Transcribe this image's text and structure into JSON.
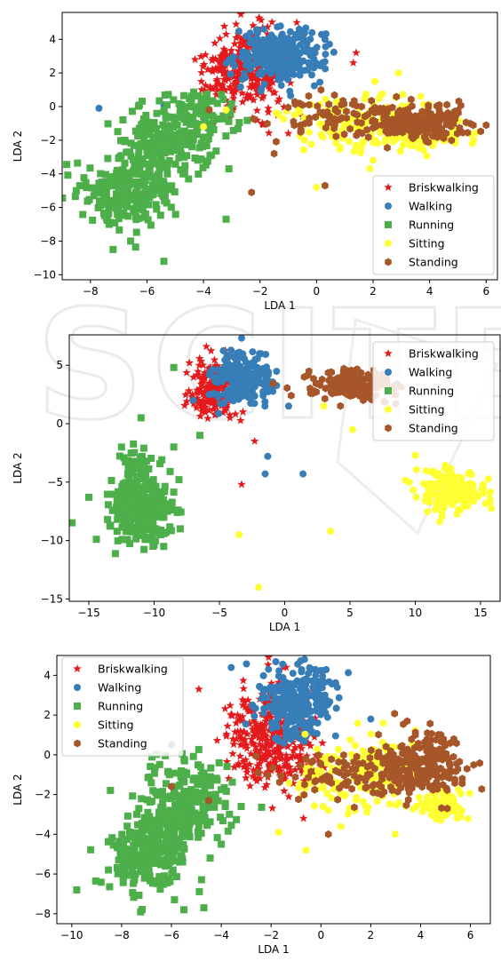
{
  "colors": {
    "Briskwalking": "#e41a1c",
    "Walking": "#377eb8",
    "Running": "#4daf4a",
    "Sitting": "#ffff33",
    "Standing": "#a65628"
  },
  "chart_data": [
    {
      "type": "scatter",
      "title": "",
      "xlabel": "LDA 1",
      "ylabel": "LDA 2",
      "xlim": [
        -9,
        6.4
      ],
      "ylim": [
        -10.3,
        5.6
      ],
      "xticks": [
        "−8",
        "−6",
        "−4",
        "−2",
        "0",
        "2",
        "4",
        "6"
      ],
      "xtick_values": [
        -8,
        -6,
        -4,
        -2,
        0,
        2,
        4,
        6
      ],
      "yticks": [
        "−10",
        "−8",
        "−6",
        "−4",
        "−2",
        "0",
        "2",
        "4"
      ],
      "ytick_values": [
        -10,
        -8,
        -6,
        -4,
        -2,
        0,
        2,
        4
      ],
      "legend_position": "lower-right",
      "series": [
        {
          "name": "Briskwalking",
          "marker": "star",
          "clusters": [
            {
              "cx": -2.3,
              "cy": 2.2,
              "sx": 0.7,
              "sy": 1.2,
              "n": 260
            },
            {
              "cx": -3.3,
              "cy": 2.0,
              "sx": 0.45,
              "sy": 0.8,
              "n": 60
            }
          ],
          "points": [
            [
              -0.7,
              5.0
            ],
            [
              -3.2,
              4.3
            ],
            [
              1.4,
              3.2
            ],
            [
              1.3,
              2.6
            ],
            [
              -4.3,
              2.8
            ],
            [
              -0.5,
              -0.6
            ],
            [
              -1.0,
              -1.6
            ]
          ]
        },
        {
          "name": "Walking",
          "marker": "circle",
          "clusters": [
            {
              "cx": -1.3,
              "cy": 3.0,
              "sx": 0.75,
              "sy": 0.8,
              "n": 280
            }
          ],
          "points": [
            [
              0.3,
              4.0
            ],
            [
              -5.4,
              0.1
            ],
            [
              -7.7,
              -0.1
            ]
          ]
        },
        {
          "name": "Running",
          "marker": "square",
          "clusters": [
            {
              "cx": -6.6,
              "cy": -5.0,
              "sx": 0.75,
              "sy": 1.0,
              "n": 240
            },
            {
              "cx": -5.2,
              "cy": -2.0,
              "sx": 0.8,
              "sy": 1.1,
              "n": 220
            },
            {
              "cx": -4.0,
              "cy": -0.5,
              "sx": 0.6,
              "sy": 0.7,
              "n": 70
            }
          ],
          "points": [
            [
              -8.5,
              -5.0
            ],
            [
              -7.2,
              -8.5
            ],
            [
              -5.4,
              -9.2
            ],
            [
              -3.2,
              -6.7
            ],
            [
              -3.1,
              -3.7
            ]
          ]
        },
        {
          "name": "Sitting",
          "marker": "circle",
          "clusters": [
            {
              "cx": 1.5,
              "cy": -0.8,
              "sx": 1.4,
              "sy": 0.9,
              "n": 160
            },
            {
              "cx": 4.0,
              "cy": -1.6,
              "sx": 0.8,
              "sy": 0.5,
              "n": 80
            }
          ],
          "points": [
            [
              -4.0,
              -1.2
            ],
            [
              -3.2,
              -0.2
            ],
            [
              2.0,
              -3.2
            ],
            [
              0.0,
              -4.8
            ],
            [
              2.9,
              2.0
            ]
          ]
        },
        {
          "name": "Standing",
          "marker": "hexagon",
          "clusters": [
            {
              "cx": 3.8,
              "cy": -1.0,
              "sx": 0.9,
              "sy": 0.55,
              "n": 200
            },
            {
              "cx": 1.0,
              "cy": -0.6,
              "sx": 1.3,
              "sy": 0.55,
              "n": 90
            }
          ],
          "points": [
            [
              -2.3,
              -5.1
            ],
            [
              0.3,
              -4.7
            ],
            [
              -1.5,
              -2.8
            ],
            [
              -3.8,
              -0.2
            ]
          ]
        }
      ]
    },
    {
      "type": "scatter",
      "title": "",
      "xlabel": "LDA 1",
      "ylabel": "LDA 2",
      "xlim": [
        -16.5,
        16.5
      ],
      "ylim": [
        -15.2,
        7.6
      ],
      "xticks": [
        "−15",
        "−10",
        "−5",
        "0",
        "5",
        "10",
        "15"
      ],
      "xtick_values": [
        -15,
        -10,
        -5,
        0,
        5,
        10,
        15
      ],
      "yticks": [
        "−15",
        "−10",
        "−5",
        "0",
        "5"
      ],
      "ytick_values": [
        -15,
        -10,
        -5,
        0,
        5
      ],
      "legend_position": "upper-right",
      "series": [
        {
          "name": "Briskwalking",
          "marker": "star",
          "clusters": [
            {
              "cx": -5.2,
              "cy": 2.8,
              "sx": 1.0,
              "sy": 1.3,
              "n": 180
            }
          ],
          "points": [
            [
              -6.0,
              6.6
            ],
            [
              -7.3,
              5.2
            ],
            [
              -3.2,
              1.0
            ],
            [
              -3.3,
              -5.2
            ],
            [
              -2.3,
              -1.5
            ]
          ]
        },
        {
          "name": "Walking",
          "marker": "circle",
          "clusters": [
            {
              "cx": -3.3,
              "cy": 3.8,
              "sx": 1.1,
              "sy": 1.1,
              "n": 240
            }
          ],
          "points": [
            [
              -7.0,
              2.0
            ],
            [
              -1.5,
              -4.3
            ],
            [
              1.4,
              -4.3
            ],
            [
              -1.3,
              -2.8
            ],
            [
              0.3,
              1.5
            ]
          ]
        },
        {
          "name": "Running",
          "marker": "square",
          "clusters": [
            {
              "cx": -11.0,
              "cy": -7.3,
              "sx": 1.2,
              "sy": 1.3,
              "n": 280
            },
            {
              "cx": -11.2,
              "cy": -4.2,
              "sx": 0.7,
              "sy": 1.0,
              "n": 50
            }
          ],
          "points": [
            [
              -15.0,
              -6.3
            ],
            [
              -8.5,
              4.8
            ],
            [
              -8.5,
              -2.0
            ],
            [
              -9.5,
              -9.5
            ],
            [
              -12.5,
              -2.0
            ],
            [
              -11.0,
              0.5
            ],
            [
              -6.5,
              -1.0
            ],
            [
              -8.0,
              -9.0
            ]
          ]
        },
        {
          "name": "Sitting",
          "marker": "circle",
          "clusters": [
            {
              "cx": 12.5,
              "cy": -5.8,
              "sx": 1.3,
              "sy": 0.9,
              "n": 160
            }
          ],
          "points": [
            [
              -3.5,
              -9.5
            ],
            [
              3.5,
              -9.2
            ],
            [
              -2.0,
              -14.0
            ],
            [
              10.0,
              -2.7
            ],
            [
              5.2,
              -0.5
            ],
            [
              3.0,
              1.5
            ]
          ]
        },
        {
          "name": "Standing",
          "marker": "hexagon",
          "clusters": [
            {
              "cx": 5.5,
              "cy": 3.2,
              "sx": 1.6,
              "sy": 0.6,
              "n": 190
            }
          ],
          "points": [
            [
              1.5,
              4.0
            ],
            [
              0.5,
              2.4
            ],
            [
              8.5,
              1.7
            ]
          ]
        }
      ]
    },
    {
      "type": "scatter",
      "title": "",
      "xlabel": "LDA 1",
      "ylabel": "LDA 2",
      "xlim": [
        -10.6,
        6.8
      ],
      "ylim": [
        -8.5,
        5.0
      ],
      "xticks": [
        "−10",
        "−8",
        "−6",
        "−4",
        "−2",
        "0",
        "2",
        "4",
        "6"
      ],
      "xtick_values": [
        -10,
        -8,
        -6,
        -4,
        -2,
        0,
        2,
        4,
        6
      ],
      "yticks": [
        "−8",
        "−6",
        "−4",
        "−2",
        "0",
        "2",
        "4"
      ],
      "ytick_values": [
        -8,
        -6,
        -4,
        -2,
        0,
        2,
        4
      ],
      "legend_position": "upper-left",
      "series": [
        {
          "name": "Briskwalking",
          "marker": "star",
          "clusters": [
            {
              "cx": -2.3,
              "cy": 1.0,
              "sx": 0.8,
              "sy": 1.3,
              "n": 260
            },
            {
              "cx": -1.3,
              "cy": -0.5,
              "sx": 0.8,
              "sy": 0.7,
              "n": 80
            }
          ],
          "points": [
            [
              -4.9,
              3.3
            ],
            [
              -1.5,
              4.4
            ],
            [
              -0.7,
              -3.2
            ]
          ]
        },
        {
          "name": "Walking",
          "marker": "circle",
          "clusters": [
            {
              "cx": -1.0,
              "cy": 2.8,
              "sx": 0.8,
              "sy": 0.9,
              "n": 280
            }
          ],
          "points": [
            [
              2.0,
              1.8
            ],
            [
              -6.0,
              0.5
            ]
          ]
        },
        {
          "name": "Running",
          "marker": "square",
          "clusters": [
            {
              "cx": -6.9,
              "cy": -5.0,
              "sx": 0.9,
              "sy": 1.0,
              "n": 250
            },
            {
              "cx": -5.4,
              "cy": -2.4,
              "sx": 0.9,
              "sy": 1.1,
              "n": 220
            }
          ],
          "points": [
            [
              -9.8,
              -6.8
            ],
            [
              -4.7,
              -7.7
            ],
            [
              -5.5,
              -7.8
            ],
            [
              -4.0,
              -4.5
            ],
            [
              -3.2,
              -2.6
            ]
          ]
        },
        {
          "name": "Sitting",
          "marker": "circle",
          "clusters": [
            {
              "cx": 1.7,
              "cy": -1.0,
              "sx": 1.3,
              "sy": 0.9,
              "n": 190
            },
            {
              "cx": 4.8,
              "cy": -2.6,
              "sx": 0.5,
              "sy": 0.4,
              "n": 80
            }
          ],
          "points": [
            [
              -1.7,
              -3.9
            ],
            [
              -0.6,
              -4.8
            ],
            [
              2.5,
              1.6
            ]
          ]
        },
        {
          "name": "Standing",
          "marker": "hexagon",
          "clusters": [
            {
              "cx": 4.0,
              "cy": -0.5,
              "sx": 0.9,
              "sy": 0.8,
              "n": 230
            },
            {
              "cx": 1.0,
              "cy": -0.9,
              "sx": 1.3,
              "sy": 0.6,
              "n": 90
            }
          ],
          "points": [
            [
              -6.0,
              -1.6
            ],
            [
              0.3,
              -4.0
            ],
            [
              -4.5,
              -2.3
            ]
          ]
        }
      ]
    }
  ]
}
